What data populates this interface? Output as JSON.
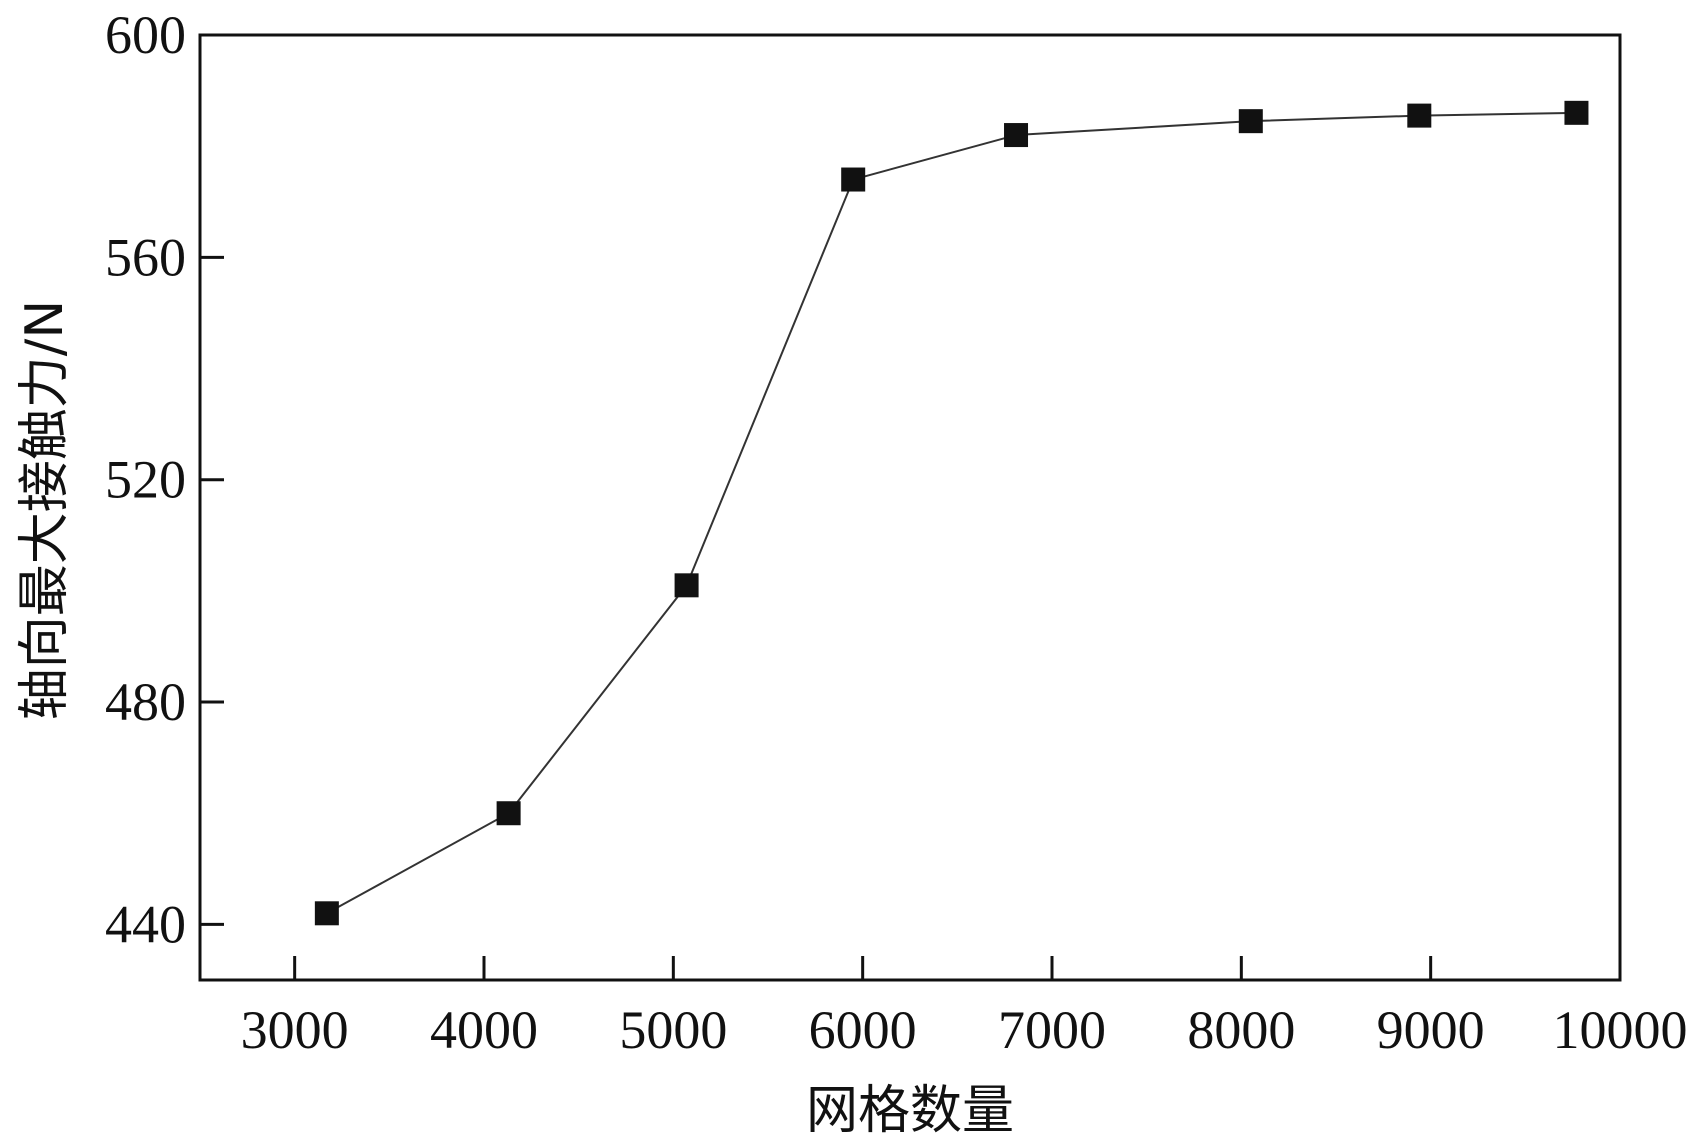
{
  "chart_data": {
    "type": "line",
    "title": "",
    "xlabel": "网格数量",
    "ylabel": "轴向最大接触力/N",
    "xlim": [
      2500,
      10000
    ],
    "ylim": [
      430,
      600
    ],
    "x_ticks": [
      "3000",
      "4000",
      "5000",
      "6000",
      "7000",
      "8000",
      "9000",
      "10000"
    ],
    "y_ticks": [
      "440",
      "480",
      "520",
      "560",
      "600"
    ],
    "grid": false,
    "marker": "square",
    "colors": {
      "line": "#333333",
      "marker": "#111111",
      "axis": "#111111"
    },
    "series": [
      {
        "x": [
          3170,
          4130,
          5070,
          5950,
          6810,
          8050,
          8940,
          9770
        ],
        "y": [
          442,
          460,
          501,
          574,
          582,
          584.5,
          585.5,
          586
        ]
      }
    ]
  }
}
